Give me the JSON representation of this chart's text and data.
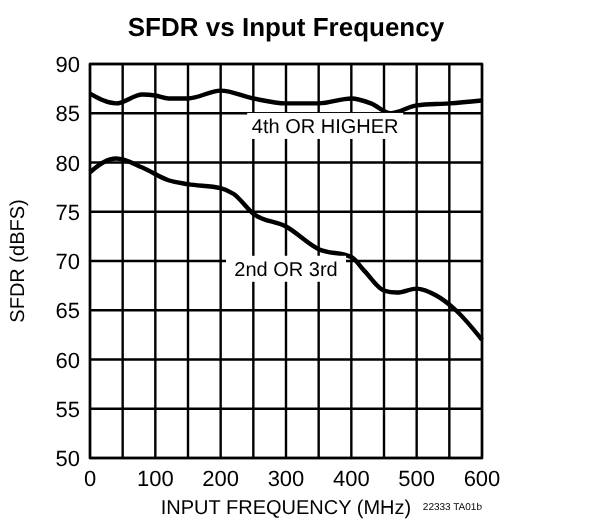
{
  "chart_data": {
    "type": "line",
    "title": "SFDR vs Input Frequency",
    "xlabel": "INPUT FREQUENCY (MHz)",
    "ylabel": "SFDR (dBFS)",
    "x": [
      0,
      40,
      80,
      100,
      120,
      150,
      200,
      250,
      300,
      350,
      400,
      430,
      460,
      500,
      550,
      600
    ],
    "series": [
      {
        "name": "4th OR HIGHER",
        "color": "#000000",
        "values": [
          87,
          86,
          86.9,
          86.8,
          86.5,
          86.5,
          87.3,
          86.5,
          86,
          86,
          86.5,
          86,
          85,
          85.8,
          86,
          86.3
        ]
      },
      {
        "name": "2nd OR 3rd",
        "color": "#000000",
        "x": [
          0,
          20,
          40,
          80,
          120,
          150,
          200,
          220,
          250,
          300,
          350,
          400,
          420,
          450,
          470,
          500,
          530,
          560,
          600
        ],
        "values": [
          79,
          80,
          80.4,
          79.5,
          78.2,
          77.8,
          77.4,
          76.8,
          74.8,
          73.5,
          71.2,
          70.4,
          69,
          67,
          66.8,
          67.2,
          66.5,
          65,
          62
        ]
      }
    ],
    "xlim": [
      0,
      600
    ],
    "xticks": [
      0,
      {
        "value": 50,
        "label": null
      },
      100,
      {
        "value": 150,
        "label": null
      },
      200,
      {
        "value": 250,
        "label": null
      },
      300,
      {
        "value": 350,
        "label": null
      },
      400,
      {
        "value": 450,
        "label": null
      },
      500,
      {
        "value": 550,
        "label": null
      },
      600
    ],
    "ylim": [
      50,
      90
    ],
    "yticks": [
      50,
      55,
      60,
      65,
      70,
      75,
      80,
      85,
      90
    ],
    "grid": true,
    "annotations": [
      "22333 TA01b"
    ]
  }
}
